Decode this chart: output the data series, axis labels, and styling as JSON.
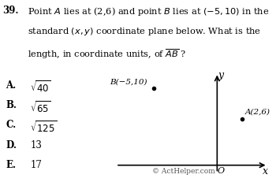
{
  "question_number": "39.",
  "question_text": "Point $A$ lies at (2,6) and point $B$ lies at (−5,10) in the\nstandard ($x,y$) coordinate plane below. What is the\nlength, in coordinate units, of $\\overline{AB}$ ?",
  "point_A": [
    2,
    6
  ],
  "point_B": [
    -5,
    10
  ],
  "point_A_label": "A(2,6)",
  "point_B_label": "B(−5,10)",
  "choices": [
    {
      "letter": "A.",
      "text": "$\\sqrt{40}$"
    },
    {
      "letter": "B.",
      "text": "$\\sqrt{65}$"
    },
    {
      "letter": "C.",
      "text": "$\\sqrt{125}$"
    },
    {
      "letter": "D.",
      "text": "13"
    },
    {
      "letter": "E.",
      "text": "17"
    }
  ],
  "copyright": "© ActHelper.com",
  "bg_color": "#ffffff",
  "text_color": "#000000",
  "axis_color": "#000000",
  "point_color": "#000000",
  "origin_label": "O"
}
